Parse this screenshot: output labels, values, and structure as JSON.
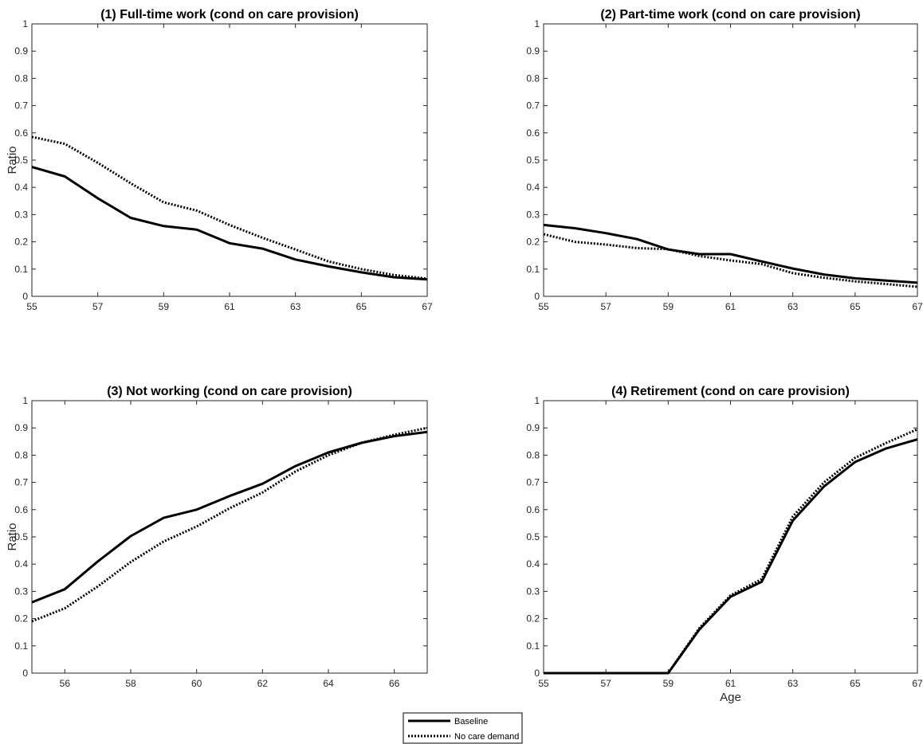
{
  "chart_data": [
    {
      "type": "line",
      "title": "(1) Full-time work (cond on care provision)",
      "xlabel": "",
      "ylabel": "Ratio",
      "xlim": [
        55,
        67
      ],
      "ylim": [
        0,
        1
      ],
      "xticks": [
        55,
        57,
        59,
        61,
        63,
        65,
        67
      ],
      "yticks": [
        0,
        0.1,
        0.2,
        0.3,
        0.4,
        0.5,
        0.6,
        0.7,
        0.8,
        0.9,
        1
      ],
      "x": [
        55,
        56,
        57,
        58,
        59,
        60,
        61,
        62,
        63,
        64,
        65,
        66,
        67
      ],
      "series": [
        {
          "name": "Baseline",
          "style": "solid",
          "values": [
            0.475,
            0.44,
            0.36,
            0.288,
            0.258,
            0.245,
            0.195,
            0.175,
            0.135,
            0.11,
            0.088,
            0.07,
            0.062
          ]
        },
        {
          "name": "No care demand",
          "style": "dotted",
          "values": [
            0.585,
            0.56,
            0.49,
            0.415,
            0.345,
            0.315,
            0.262,
            0.215,
            0.172,
            0.128,
            0.1,
            0.078,
            0.065
          ]
        }
      ]
    },
    {
      "type": "line",
      "title": "(2) Part-time work (cond on care provision)",
      "xlabel": "",
      "ylabel": "",
      "xlim": [
        55,
        67
      ],
      "ylim": [
        0,
        1
      ],
      "xticks": [
        55,
        57,
        59,
        61,
        63,
        65,
        67
      ],
      "yticks": [
        0,
        0.1,
        0.2,
        0.3,
        0.4,
        0.5,
        0.6,
        0.7,
        0.8,
        0.9,
        1
      ],
      "x": [
        55,
        56,
        57,
        58,
        59,
        60,
        61,
        62,
        63,
        64,
        65,
        66,
        67
      ],
      "series": [
        {
          "name": "Baseline",
          "style": "solid",
          "values": [
            0.262,
            0.25,
            0.232,
            0.21,
            0.172,
            0.155,
            0.155,
            0.128,
            0.102,
            0.08,
            0.066,
            0.058,
            0.05
          ]
        },
        {
          "name": "No care demand",
          "style": "dotted",
          "values": [
            0.228,
            0.2,
            0.19,
            0.177,
            0.173,
            0.148,
            0.132,
            0.118,
            0.085,
            0.068,
            0.055,
            0.045,
            0.035
          ]
        }
      ]
    },
    {
      "type": "line",
      "title": "(3) Not working (cond on care provision)",
      "xlabel": "",
      "ylabel": "Ratio",
      "xlim": [
        55,
        67
      ],
      "ylim": [
        0,
        1
      ],
      "xticks": [
        56,
        58,
        60,
        62,
        64,
        66
      ],
      "yticks": [
        0,
        0.1,
        0.2,
        0.3,
        0.4,
        0.5,
        0.6,
        0.7,
        0.8,
        0.9,
        1
      ],
      "x": [
        55,
        56,
        57,
        58,
        59,
        60,
        61,
        62,
        63,
        64,
        65,
        66,
        67
      ],
      "series": [
        {
          "name": "Baseline",
          "style": "solid",
          "values": [
            0.26,
            0.308,
            0.41,
            0.503,
            0.57,
            0.6,
            0.65,
            0.695,
            0.76,
            0.81,
            0.845,
            0.87,
            0.885
          ]
        },
        {
          "name": "No care demand",
          "style": "dotted",
          "values": [
            0.19,
            0.238,
            0.318,
            0.408,
            0.483,
            0.538,
            0.605,
            0.663,
            0.74,
            0.8,
            0.845,
            0.875,
            0.9
          ]
        }
      ]
    },
    {
      "type": "line",
      "title": "(4) Retirement (cond on care provision)",
      "xlabel": "Age",
      "ylabel": "",
      "xlim": [
        55,
        67
      ],
      "ylim": [
        0,
        1
      ],
      "xticks": [
        55,
        57,
        59,
        61,
        63,
        65,
        67
      ],
      "yticks": [
        0,
        0.1,
        0.2,
        0.3,
        0.4,
        0.5,
        0.6,
        0.7,
        0.8,
        0.9,
        1
      ],
      "x": [
        55,
        56,
        57,
        58,
        59,
        60,
        61,
        62,
        63,
        64,
        65,
        66,
        67
      ],
      "series": [
        {
          "name": "Baseline",
          "style": "solid",
          "values": [
            0,
            0,
            0,
            0,
            0,
            0.16,
            0.28,
            0.335,
            0.56,
            0.685,
            0.775,
            0.825,
            0.858
          ]
        },
        {
          "name": "No care demand",
          "style": "dotted",
          "values": [
            0,
            0,
            0,
            0,
            0,
            0.165,
            0.285,
            0.345,
            0.575,
            0.7,
            0.79,
            0.845,
            0.895
          ]
        }
      ]
    }
  ],
  "legend": {
    "position": "bottom-center",
    "entries": [
      {
        "label": "Baseline",
        "style": "solid"
      },
      {
        "label": "No care demand",
        "style": "dotted"
      }
    ]
  }
}
